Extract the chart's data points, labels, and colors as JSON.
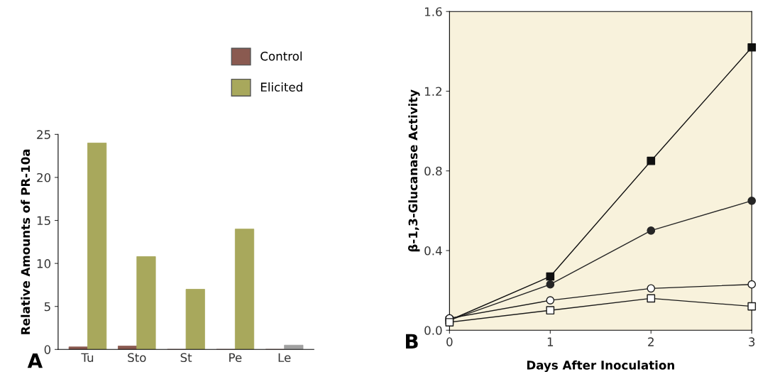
{
  "chart_data": [
    {
      "type": "bar",
      "ylabel": "Relative Amounts of PR-10a",
      "categories": [
        "Tu",
        "Sto",
        "St",
        "Pe",
        "Le"
      ],
      "series": [
        {
          "name": "Control",
          "color": "#8a5a50",
          "values": [
            0.3,
            0.4,
            0,
            0,
            0
          ]
        },
        {
          "name": "Elicited",
          "color": "#a8a85c",
          "colors": [
            "#a8a85c",
            "#a8a85c",
            "#a8a85c",
            "#a8a85c",
            "#a0a0a0"
          ],
          "values": [
            24,
            10.8,
            7,
            14,
            0.5
          ]
        }
      ],
      "ylim": [
        0,
        25
      ],
      "yticks": [
        0,
        5,
        10,
        15,
        20,
        25
      ],
      "legend": "top right",
      "grid": false,
      "annotations": [
        "A"
      ]
    },
    {
      "type": "line",
      "xlabel": "Days After Inoculation",
      "ylabel": "β-1,3-Glucanase Activity",
      "x": [
        0,
        1,
        2,
        3
      ],
      "series": [
        {
          "color": "#101010",
          "marker": "square",
          "colors": [
            "#101010",
            "#101010",
            "#101010",
            "#101010"
          ],
          "values": [
            0.05,
            0.27,
            0.85,
            1.42
          ]
        },
        {
          "color": "#262626",
          "marker": "circle",
          "colors": [
            "#262626",
            "#262626",
            "#262626",
            "#262626"
          ],
          "values": [
            0.05,
            0.23,
            0.5,
            0.65
          ]
        },
        {
          "color": "#1a1a1a",
          "marker": "circle",
          "colors": [
            "#ffffff",
            "#ffffff",
            "#ffffff",
            "#ffffff"
          ],
          "values": [
            0.06,
            0.15,
            0.21,
            0.23
          ]
        },
        {
          "color": "#1a1a1a",
          "marker": "square",
          "colors": [
            "#ffffff",
            "#ffffff",
            "#ffffff",
            "#ffffff"
          ],
          "values": [
            0.04,
            0.1,
            0.16,
            0.12
          ]
        }
      ],
      "xlim": [
        0,
        3
      ],
      "xticks": [
        0,
        1,
        2,
        3
      ],
      "ylim": [
        0,
        1.6
      ],
      "yticks": [
        {
          "value": 0,
          "label": "0.0"
        },
        0.4,
        0.8,
        1.2,
        1.6
      ],
      "grid": false,
      "legend": false,
      "annotations": [
        "B"
      ]
    }
  ]
}
